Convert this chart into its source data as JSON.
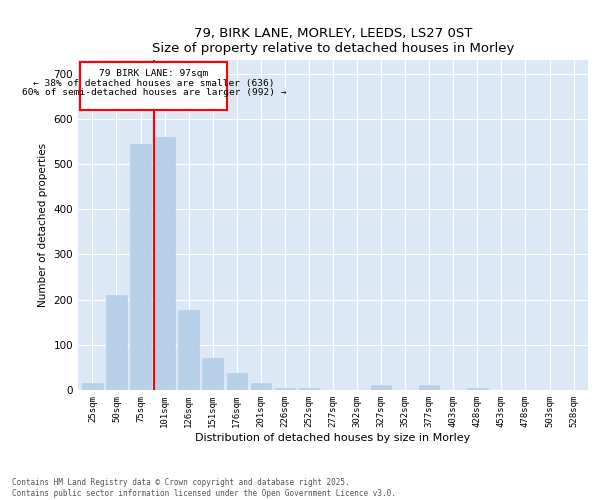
{
  "title": "79, BIRK LANE, MORLEY, LEEDS, LS27 0ST",
  "subtitle": "Size of property relative to detached houses in Morley",
  "xlabel": "Distribution of detached houses by size in Morley",
  "ylabel": "Number of detached properties",
  "categories": [
    "25sqm",
    "50sqm",
    "75sqm",
    "101sqm",
    "126sqm",
    "151sqm",
    "176sqm",
    "201sqm",
    "226sqm",
    "252sqm",
    "277sqm",
    "302sqm",
    "327sqm",
    "352sqm",
    "377sqm",
    "403sqm",
    "428sqm",
    "453sqm",
    "478sqm",
    "503sqm",
    "528sqm"
  ],
  "values": [
    15,
    210,
    545,
    560,
    178,
    70,
    38,
    15,
    5,
    5,
    0,
    0,
    10,
    0,
    12,
    0,
    5,
    0,
    0,
    0,
    0
  ],
  "bar_color": "#b8cfe8",
  "bar_edgecolor": "#b8cfe8",
  "redline_label": "79 BIRK LANE: 97sqm",
  "annotation_line1": "← 38% of detached houses are smaller (636)",
  "annotation_line2": "60% of semi-detached houses are larger (992) →",
  "ylim": [
    0,
    730
  ],
  "yticks": [
    0,
    100,
    200,
    300,
    400,
    500,
    600,
    700
  ],
  "bg_color": "#dce8f5",
  "footer1": "Contains HM Land Registry data © Crown copyright and database right 2025.",
  "footer2": "Contains public sector information licensed under the Open Government Licence v3.0."
}
